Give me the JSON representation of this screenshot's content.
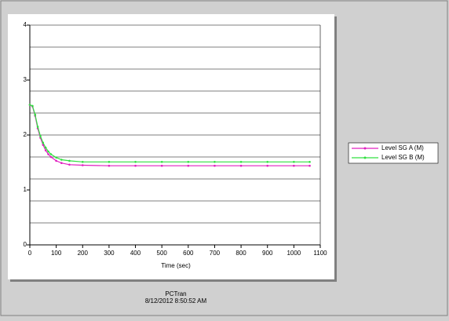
{
  "chart_data": {
    "type": "line",
    "x_label": "Time (sec)",
    "footer": [
      "PCTran",
      "8/12/2012 8:50:52 AM"
    ],
    "x": [
      0,
      10,
      20,
      30,
      40,
      50,
      60,
      70,
      80,
      100,
      120,
      150,
      200,
      300,
      400,
      500,
      600,
      700,
      800,
      900,
      1000,
      1060
    ],
    "series": [
      {
        "name": "Level SG A (M)",
        "color": "#e020c0",
        "values": [
          2.55,
          2.52,
          2.35,
          2.12,
          1.95,
          1.82,
          1.72,
          1.65,
          1.6,
          1.53,
          1.49,
          1.46,
          1.45,
          1.44,
          1.44,
          1.44,
          1.44,
          1.44,
          1.44,
          1.44,
          1.44,
          1.44
        ]
      },
      {
        "name": "Level SG B (M)",
        "color": "#30e040",
        "values": [
          2.55,
          2.53,
          2.37,
          2.15,
          1.98,
          1.86,
          1.77,
          1.7,
          1.65,
          1.59,
          1.55,
          1.53,
          1.51,
          1.51,
          1.51,
          1.51,
          1.51,
          1.51,
          1.51,
          1.51,
          1.51,
          1.51
        ]
      }
    ],
    "xlim": [
      0,
      1100
    ],
    "xticks": [
      0,
      100,
      200,
      300,
      400,
      500,
      600,
      700,
      800,
      900,
      1000,
      1100
    ],
    "ylim": [
      0,
      4
    ],
    "yticks": [
      0,
      1,
      2,
      3,
      4
    ],
    "ygrid": [
      0.4,
      0.8,
      1.2,
      1.6,
      2,
      2.4,
      2.8,
      3.2,
      3.6,
      4
    ],
    "grid": true,
    "legend": "right"
  }
}
